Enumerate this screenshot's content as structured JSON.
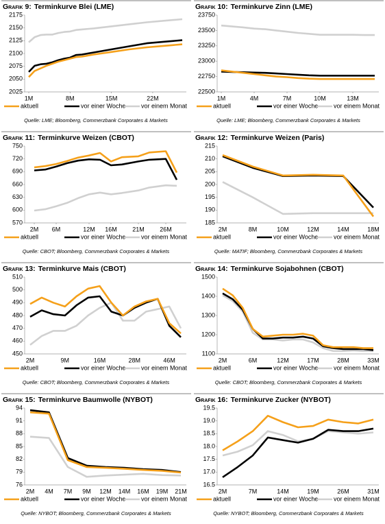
{
  "chart_data": [
    {
      "type": "line",
      "prefix": "Grafik 9:",
      "title": "Terminkurve Blei (LME)",
      "source": "Quelle: LME; Bloomberg, Commerzbank Corporates & Markets",
      "x": [
        1,
        2,
        3,
        4,
        5,
        6,
        7,
        8,
        9,
        10,
        12,
        15,
        18,
        21,
        24,
        27
      ],
      "xlim": [
        1,
        27
      ],
      "xticks": [
        {
          "value": 1,
          "label": "1M"
        },
        {
          "value": 8,
          "label": "8M"
        },
        {
          "value": 15,
          "label": "15M"
        },
        {
          "value": 22,
          "label": "22M"
        }
      ],
      "ylim": [
        2025,
        2175
      ],
      "yticks": [
        2025,
        2050,
        2075,
        2100,
        2125,
        2150,
        2175
      ],
      "series": [
        {
          "name": "aktuell",
          "color": "#f5a01a",
          "values": [
            2054,
            2066,
            2071,
            2076,
            2080,
            2084,
            2087,
            2090,
            2093,
            2094,
            2098,
            2103,
            2108,
            2112,
            2115,
            2118
          ]
        },
        {
          "name": "vor einer Woche",
          "color": "#000000",
          "values": [
            2064,
            2076,
            2079,
            2080,
            2083,
            2087,
            2090,
            2092,
            2097,
            2098,
            2102,
            2108,
            2114,
            2120,
            2123,
            2126
          ]
        },
        {
          "name": "vor einem Monat",
          "color": "#d0d0d0",
          "values": [
            2122,
            2132,
            2136,
            2137,
            2137,
            2140,
            2142,
            2143,
            2146,
            2147,
            2149,
            2153,
            2157,
            2161,
            2164,
            2167
          ]
        }
      ]
    },
    {
      "type": "line",
      "prefix": "Grafik 10:",
      "title": "Terminkurve Zinn (LME)",
      "source": "Quelle: LME; Bloomberg, Commerzbank Corporates & Markets",
      "x": [
        1,
        2,
        3,
        4,
        5,
        6,
        7,
        8,
        9,
        10,
        11,
        12,
        13,
        14,
        15
      ],
      "xlim": [
        1,
        15
      ],
      "xticks": [
        {
          "value": 1,
          "label": "1M"
        },
        {
          "value": 4,
          "label": "4M"
        },
        {
          "value": 7,
          "label": "7M"
        },
        {
          "value": 10,
          "label": "10M"
        },
        {
          "value": 13,
          "label": "13M"
        }
      ],
      "ylim": [
        22500,
        23750
      ],
      "yticks": [
        22500,
        22750,
        23000,
        23250,
        23500,
        23750
      ],
      "series": [
        {
          "name": "aktuell",
          "color": "#f5a01a",
          "values": [
            22850,
            22830,
            22810,
            22790,
            22770,
            22750,
            22740,
            22725,
            22715,
            22710,
            22710,
            22710,
            22710,
            22710,
            22710
          ]
        },
        {
          "name": "vor einer Woche",
          "color": "#000000",
          "values": [
            22830,
            22825,
            22820,
            22815,
            22810,
            22800,
            22790,
            22780,
            22770,
            22765,
            22765,
            22765,
            22765,
            22765,
            22765
          ]
        },
        {
          "name": "vor einem Monat",
          "color": "#d0d0d0",
          "values": [
            23580,
            23565,
            23550,
            23530,
            23520,
            23500,
            23480,
            23460,
            23445,
            23430,
            23430,
            23430,
            23430,
            23425,
            23425
          ]
        }
      ]
    },
    {
      "type": "line",
      "prefix": "Grafik 11:",
      "title": "Terminkurve Weizen (CBOT)",
      "source": "Quelle: CBOT; Bloomberg, Commerzbank Corporates & Markets",
      "x": [
        2,
        4,
        6,
        8,
        10,
        12,
        14,
        16,
        18,
        21,
        23,
        26,
        28
      ],
      "xlim": [
        1,
        29
      ],
      "xticks": [
        {
          "value": 2,
          "label": "2M"
        },
        {
          "value": 6,
          "label": "6M"
        },
        {
          "value": 12,
          "label": "12M"
        },
        {
          "value": 16,
          "label": "16M"
        },
        {
          "value": 21,
          "label": "21M"
        },
        {
          "value": 26,
          "label": "26M"
        }
      ],
      "ylim": [
        570,
        750
      ],
      "yticks": [
        570,
        600,
        630,
        660,
        690,
        720,
        750
      ],
      "series": [
        {
          "name": "aktuell",
          "color": "#f5a01a",
          "values": [
            700,
            703,
            708,
            715,
            723,
            728,
            734,
            714,
            724,
            726,
            735,
            738,
            688
          ]
        },
        {
          "name": "vor einer Woche",
          "color": "#000000",
          "values": [
            693,
            695,
            702,
            710,
            716,
            719,
            718,
            705,
            707,
            714,
            718,
            720,
            671
          ]
        },
        {
          "name": "vor einem Monat",
          "color": "#d0d0d0",
          "values": [
            599,
            602,
            609,
            617,
            628,
            637,
            641,
            637,
            640,
            646,
            653,
            658,
            657
          ]
        }
      ]
    },
    {
      "type": "line",
      "prefix": "Grafik 12:",
      "title": "Terminkurve Weizen (Paris)",
      "source": "Quelle: MATIF; Bloomberg, Commerzbank Corporates & Markets",
      "categories": [
        "2M",
        "8M",
        "10M",
        "12M",
        "14M",
        "18M"
      ],
      "ylim": [
        185,
        215
      ],
      "yticks": [
        185,
        190,
        195,
        200,
        205,
        210,
        215
      ],
      "series": [
        {
          "name": "aktuell",
          "color": "#f5a01a",
          "values": [
            211.5,
            207,
            203.5,
            203.8,
            203.5,
            187.5
          ]
        },
        {
          "name": "vor einer Woche",
          "color": "#000000",
          "values": [
            211,
            206.5,
            203.3,
            203.5,
            203.3,
            191
          ]
        },
        {
          "name": "vor einem Monat",
          "color": "#d0d0d0",
          "values": [
            201,
            195,
            188.5,
            188.8,
            188.8,
            188.8
          ]
        }
      ]
    },
    {
      "type": "line",
      "prefix": "Grafik 13:",
      "title": "Terminkurve Mais (CBOT)",
      "source": "Quelle: CBOT; Bloomberg, Commerzbank Corporates & Markets",
      "categories": [
        "2M",
        null,
        null,
        "9M",
        null,
        null,
        "16M",
        null,
        null,
        "28M",
        null,
        null,
        "46M",
        null
      ],
      "ylim": [
        450,
        510
      ],
      "yticks": [
        450,
        460,
        470,
        480,
        490,
        500,
        510
      ],
      "series": [
        {
          "name": "aktuell",
          "color": "#f5a01a",
          "values": [
            489,
            494,
            490,
            487,
            495,
            501,
            503,
            490,
            480,
            487,
            491,
            493,
            474,
            466
          ]
        },
        {
          "name": "vor einer Woche",
          "color": "#000000",
          "values": [
            479,
            484,
            481,
            480,
            488,
            494,
            495,
            483,
            480,
            486,
            490,
            493,
            472,
            463
          ]
        },
        {
          "name": "vor einem Monat",
          "color": "#d0d0d0",
          "values": [
            457,
            464,
            468,
            468,
            472,
            480,
            486,
            490,
            476,
            476,
            483,
            485,
            487,
            470
          ]
        }
      ]
    },
    {
      "type": "line",
      "prefix": "Grafik 14:",
      "title": "Terminkurve Sojabohnen (CBOT)",
      "source": "Quelle: CBOT; Bloomberg, Commerzbank Corporates & Markets",
      "categories": [
        "2M",
        null,
        null,
        "6M",
        null,
        null,
        "12M",
        null,
        null,
        "17M",
        null,
        null,
        "28M",
        null,
        null,
        "33M"
      ],
      "ylim": [
        1100,
        1500
      ],
      "yticks": [
        1100,
        1200,
        1300,
        1400,
        1500
      ],
      "series": [
        {
          "name": "aktuell",
          "color": "#f5a01a",
          "values": [
            1440,
            1405,
            1340,
            1230,
            1190,
            1195,
            1200,
            1200,
            1205,
            1195,
            1145,
            1135,
            1135,
            1135,
            1130,
            1130
          ]
        },
        {
          "name": "vor einer Woche",
          "color": "#000000",
          "values": [
            1415,
            1385,
            1330,
            1230,
            1180,
            1180,
            1185,
            1185,
            1190,
            1180,
            1140,
            1130,
            1125,
            1125,
            1125,
            1120
          ]
        },
        {
          "name": "vor einem Monat",
          "color": "#d0d0d0",
          "values": [
            1405,
            1375,
            1320,
            1210,
            1175,
            1175,
            1170,
            1175,
            1175,
            1160,
            1130,
            1115,
            1115,
            1118,
            1115,
            1115
          ]
        }
      ]
    },
    {
      "type": "line",
      "prefix": "Grafik 15:",
      "title": "Terminkurve Baumwolle (NYBOT)",
      "source": "Quelle: NYBOT; Bloomberg, Commerzbank Corporates & Markets",
      "categories": [
        "2M",
        "4M",
        "7M",
        "9M",
        "12M",
        "14M",
        "16M",
        "19M",
        "21M"
      ],
      "ylim": [
        76,
        94
      ],
      "yticks": [
        76,
        79,
        82,
        85,
        88,
        91,
        94
      ],
      "series": [
        {
          "name": "aktuell",
          "color": "#f5a01a",
          "values": [
            93,
            92.7,
            81.8,
            80.2,
            80,
            79.8,
            79.5,
            79.3,
            78.9
          ]
        },
        {
          "name": "vor einer Woche",
          "color": "#000000",
          "values": [
            93.5,
            93,
            82.3,
            80.5,
            80.2,
            80,
            79.7,
            79.5,
            79
          ]
        },
        {
          "name": "vor einem Monat",
          "color": "#d0d0d0",
          "values": [
            87.3,
            87,
            80.2,
            77.9,
            78.2,
            78.4,
            78.6,
            78.3,
            78.2
          ]
        }
      ]
    },
    {
      "type": "line",
      "prefix": "Grafik 16:",
      "title": "Terminkurve Zucker (NYBOT)",
      "source": "Quelle: NYBOT; Bloomberg, Commerzbank Corporates & Markets",
      "categories": [
        "2M",
        null,
        "7M",
        null,
        "14M",
        null,
        "19M",
        null,
        "26M",
        null,
        "31M"
      ],
      "ylim": [
        16.5,
        19.5
      ],
      "yticks": [
        16.5,
        {
          "value": 17,
          "label": "17.0"
        },
        17.5,
        {
          "value": 18,
          "label": "18.0"
        },
        18.5,
        {
          "value": 19,
          "label": "19.0"
        },
        19.5
      ],
      "series": [
        {
          "name": "aktuell",
          "color": "#f5a01a",
          "values": [
            17.85,
            18.2,
            18.6,
            19.2,
            18.95,
            18.75,
            18.8,
            19.05,
            18.95,
            18.9,
            19.05
          ]
        },
        {
          "name": "vor einer Woche",
          "color": "#000000",
          "values": [
            16.8,
            17.2,
            17.65,
            18.35,
            18.25,
            18.15,
            18.3,
            18.65,
            18.6,
            18.6,
            18.7
          ]
        },
        {
          "name": "vor einem Monat",
          "color": "#d0d0d0",
          "values": [
            17.65,
            17.8,
            18.05,
            18.6,
            18.45,
            18.2,
            18.3,
            18.6,
            18.55,
            18.5,
            18.55
          ]
        }
      ]
    }
  ]
}
